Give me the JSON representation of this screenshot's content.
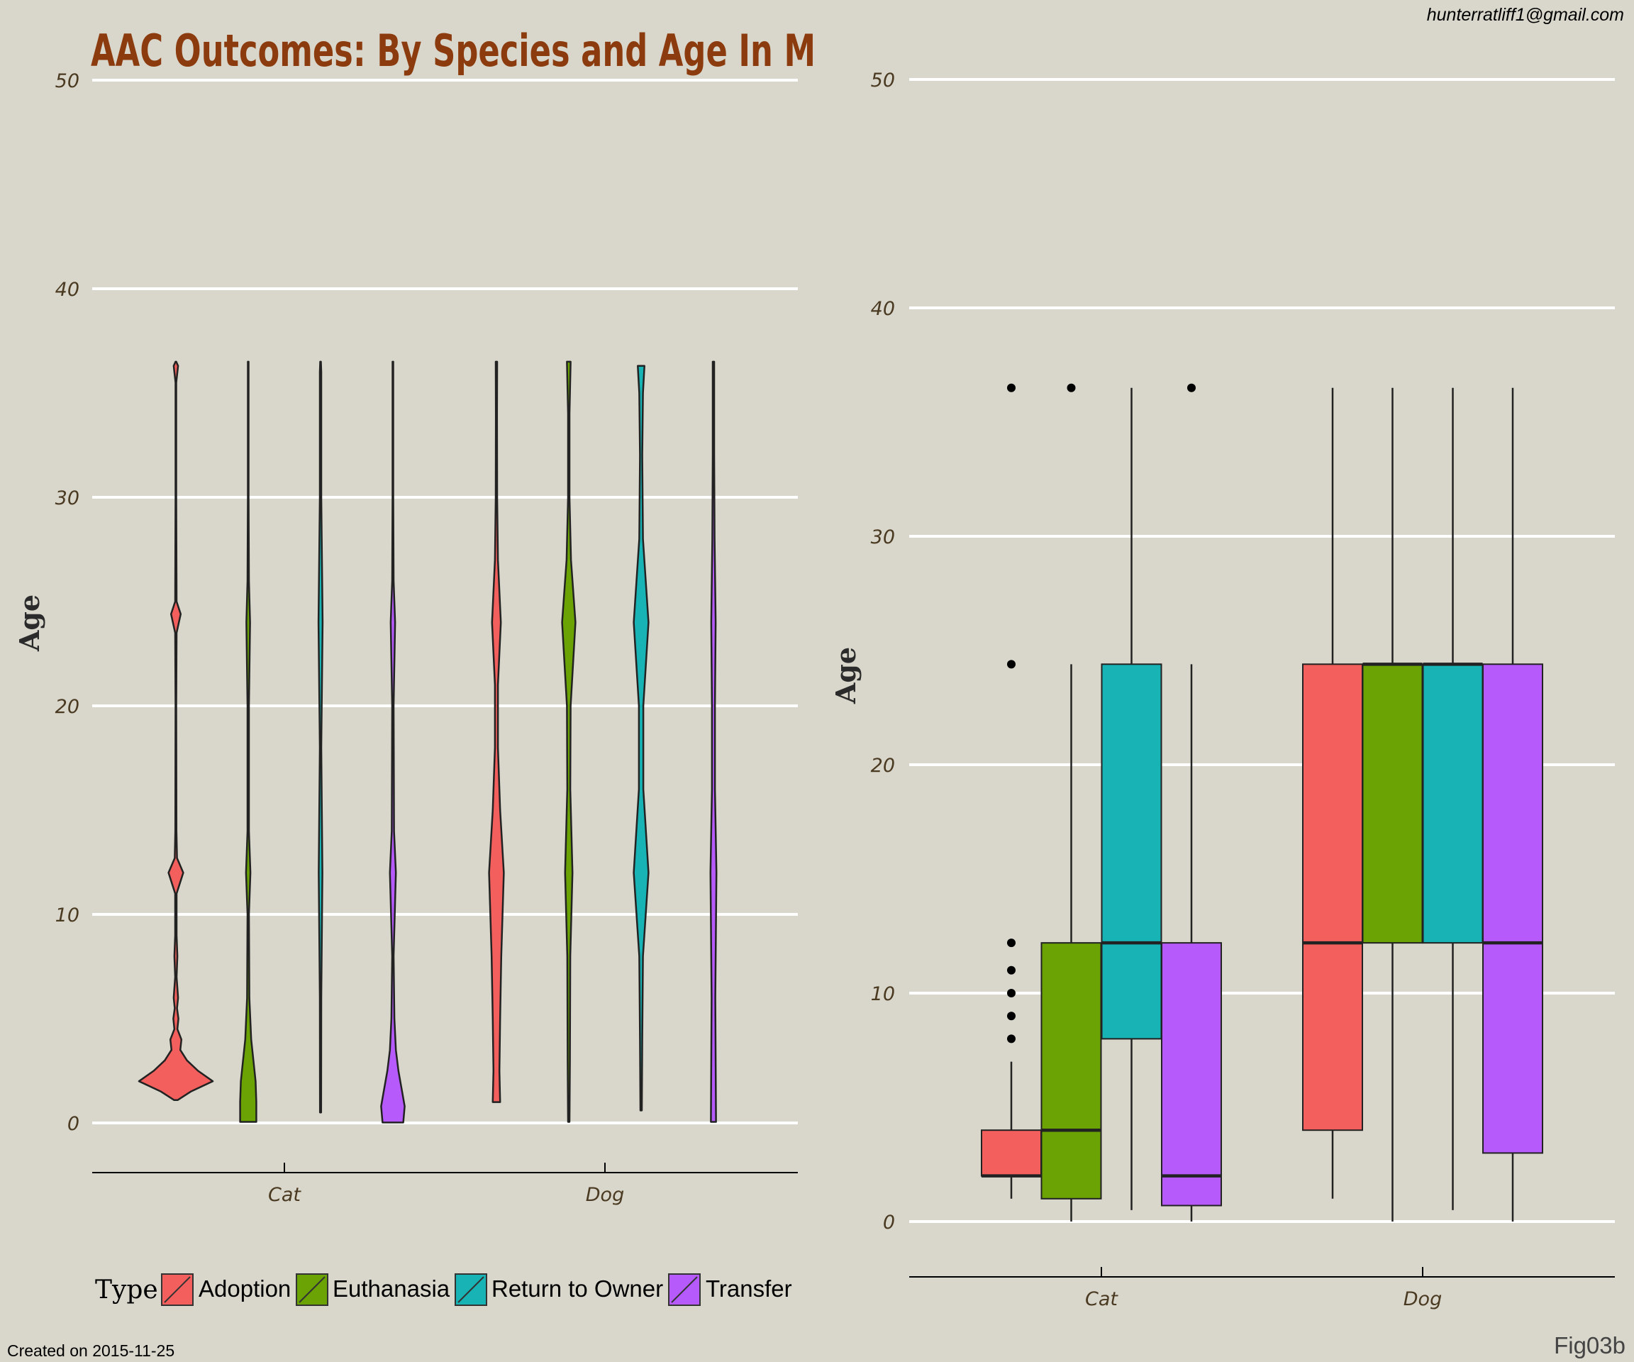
{
  "title": "AAC Outcomes: By Species and Age In M",
  "email": "hunterratliff1@gmail.com",
  "created": "Created on 2015-11-25",
  "fig_tag": "Fig03b",
  "legend": {
    "title": "Type",
    "items": [
      {
        "label": "Adoption",
        "color": "#f25f5c"
      },
      {
        "label": "Euthanasia",
        "color": "#6aa303"
      },
      {
        "label": "Return to Owner",
        "color": "#17b3b5"
      },
      {
        "label": "Transfer",
        "color": "#b65afc"
      }
    ]
  },
  "chart_data": [
    {
      "type": "violin",
      "ylabel": "Age",
      "ylim": [
        0,
        50
      ],
      "yticks": [
        0,
        10,
        20,
        30,
        40,
        50
      ],
      "categories": [
        "Cat",
        "Dog"
      ],
      "series_names": [
        "Adoption",
        "Euthanasia",
        "Return to Owner",
        "Transfer"
      ],
      "violins": [
        {
          "category": "Cat",
          "series": "Adoption",
          "range": [
            1.1,
            36.5
          ],
          "profile": [
            [
              1.1,
              0.05
            ],
            [
              1.5,
              0.4
            ],
            [
              2,
              1.0
            ],
            [
              2.5,
              0.6
            ],
            [
              3,
              0.3
            ],
            [
              3.5,
              0.12
            ],
            [
              4,
              0.15
            ],
            [
              4.5,
              0.04
            ],
            [
              5,
              0.07
            ],
            [
              5.5,
              0.03
            ],
            [
              6,
              0.06
            ],
            [
              7,
              0.02
            ],
            [
              8,
              0.04
            ],
            [
              9,
              0.02
            ],
            [
              11,
              0.02
            ],
            [
              12,
              0.2
            ],
            [
              12.7,
              0.03
            ],
            [
              14,
              0.015
            ],
            [
              20,
              0.01
            ],
            [
              23.5,
              0.02
            ],
            [
              24.4,
              0.13
            ],
            [
              25,
              0.02
            ],
            [
              30,
              0.01
            ],
            [
              35.5,
              0.01
            ],
            [
              36.3,
              0.06
            ],
            [
              36.5,
              0.01
            ]
          ]
        },
        {
          "category": "Cat",
          "series": "Euthanasia",
          "range": [
            0.05,
            36.5
          ],
          "profile": [
            [
              0.05,
              0.22
            ],
            [
              1,
              0.22
            ],
            [
              2,
              0.2
            ],
            [
              3,
              0.14
            ],
            [
              4,
              0.08
            ],
            [
              6,
              0.03
            ],
            [
              10,
              0.02
            ],
            [
              12,
              0.06
            ],
            [
              14,
              0.02
            ],
            [
              20,
              0.02
            ],
            [
              24,
              0.05
            ],
            [
              26,
              0.02
            ],
            [
              30,
              0.01
            ],
            [
              36.5,
              0.01
            ]
          ]
        },
        {
          "category": "Cat",
          "series": "Return to Owner",
          "range": [
            0.5,
            36.5
          ],
          "profile": [
            [
              0.5,
              0.015
            ],
            [
              6,
              0.02
            ],
            [
              12,
              0.05
            ],
            [
              18,
              0.02
            ],
            [
              24,
              0.055
            ],
            [
              30,
              0.02
            ],
            [
              36,
              0.02
            ],
            [
              36.5,
              0.01
            ]
          ]
        },
        {
          "category": "Cat",
          "series": "Transfer",
          "range": [
            0.02,
            36.5
          ],
          "profile": [
            [
              0.02,
              0.28
            ],
            [
              0.8,
              0.32
            ],
            [
              1.5,
              0.25
            ],
            [
              2.5,
              0.15
            ],
            [
              3.5,
              0.08
            ],
            [
              5,
              0.04
            ],
            [
              8,
              0.02
            ],
            [
              12,
              0.08
            ],
            [
              14,
              0.03
            ],
            [
              20,
              0.02
            ],
            [
              24,
              0.06
            ],
            [
              26,
              0.02
            ],
            [
              30,
              0.01
            ],
            [
              36.5,
              0.01
            ]
          ]
        },
        {
          "category": "Dog",
          "series": "Adoption",
          "range": [
            1,
            36.5
          ],
          "profile": [
            [
              1,
              0.1
            ],
            [
              2.5,
              0.08
            ],
            [
              5,
              0.1
            ],
            [
              8,
              0.13
            ],
            [
              12,
              0.2
            ],
            [
              15,
              0.1
            ],
            [
              18,
              0.04
            ],
            [
              21,
              0.04
            ],
            [
              24,
              0.12
            ],
            [
              27,
              0.04
            ],
            [
              30,
              0.02
            ],
            [
              34,
              0.015
            ],
            [
              36.5,
              0.02
            ]
          ]
        },
        {
          "category": "Dog",
          "series": "Euthanasia",
          "range": [
            0.05,
            36.5
          ],
          "profile": [
            [
              0.05,
              0.02
            ],
            [
              3,
              0.03
            ],
            [
              8,
              0.04
            ],
            [
              12,
              0.1
            ],
            [
              16,
              0.04
            ],
            [
              20,
              0.05
            ],
            [
              24,
              0.18
            ],
            [
              27,
              0.06
            ],
            [
              30,
              0.02
            ],
            [
              34,
              0.02
            ],
            [
              36.5,
              0.05
            ]
          ]
        },
        {
          "category": "Dog",
          "series": "Return to Owner",
          "range": [
            0.6,
            36.3
          ],
          "profile": [
            [
              0.6,
              0.02
            ],
            [
              4,
              0.03
            ],
            [
              8,
              0.05
            ],
            [
              12,
              0.2
            ],
            [
              16,
              0.06
            ],
            [
              20,
              0.06
            ],
            [
              24,
              0.2
            ],
            [
              28,
              0.05
            ],
            [
              32,
              0.03
            ],
            [
              35,
              0.05
            ],
            [
              36.3,
              0.09
            ]
          ]
        },
        {
          "category": "Dog",
          "series": "Transfer",
          "range": [
            0.05,
            36.5
          ],
          "profile": [
            [
              0.05,
              0.07
            ],
            [
              3,
              0.06
            ],
            [
              6,
              0.05
            ],
            [
              12,
              0.08
            ],
            [
              16,
              0.04
            ],
            [
              20,
              0.04
            ],
            [
              24,
              0.06
            ],
            [
              28,
              0.03
            ],
            [
              32,
              0.02
            ],
            [
              36.5,
              0.02
            ]
          ]
        }
      ]
    },
    {
      "type": "box",
      "ylabel": "Age",
      "ylim": [
        0,
        50
      ],
      "yticks": [
        0,
        10,
        20,
        30,
        40,
        50
      ],
      "categories": [
        "Cat",
        "Dog"
      ],
      "series_names": [
        "Adoption",
        "Euthanasia",
        "Return to Owner",
        "Transfer"
      ],
      "boxes": [
        {
          "category": "Cat",
          "series": "Adoption",
          "min": 1,
          "q1": 2,
          "median": 2,
          "q3": 4,
          "max": 7,
          "outliers": [
            8,
            9,
            10,
            11,
            12.2,
            24.4,
            36.5
          ]
        },
        {
          "category": "Cat",
          "series": "Euthanasia",
          "min": 0,
          "q1": 1,
          "median": 4,
          "q3": 12.2,
          "max": 24.4,
          "outliers": [
            36.5
          ]
        },
        {
          "category": "Cat",
          "series": "Return to Owner",
          "min": 0.5,
          "q1": 8,
          "median": 12.2,
          "q3": 24.4,
          "max": 36.5,
          "outliers": []
        },
        {
          "category": "Cat",
          "series": "Transfer",
          "min": 0,
          "q1": 0.7,
          "median": 2,
          "q3": 12.2,
          "max": 24.4,
          "outliers": [
            36.5
          ]
        },
        {
          "category": "Dog",
          "series": "Adoption",
          "min": 1,
          "q1": 4,
          "median": 12.2,
          "q3": 24.4,
          "max": 36.5,
          "outliers": []
        },
        {
          "category": "Dog",
          "series": "Euthanasia",
          "min": 0,
          "q1": 12.2,
          "median": 24.4,
          "q3": 24.4,
          "max": 36.5,
          "outliers": []
        },
        {
          "category": "Dog",
          "series": "Return to Owner",
          "min": 0.5,
          "q1": 12.2,
          "median": 24.4,
          "q3": 24.4,
          "max": 36.5,
          "outliers": []
        },
        {
          "category": "Dog",
          "series": "Transfer",
          "min": 0,
          "q1": 3,
          "median": 12.2,
          "q3": 24.4,
          "max": 36.5,
          "outliers": []
        }
      ]
    }
  ]
}
